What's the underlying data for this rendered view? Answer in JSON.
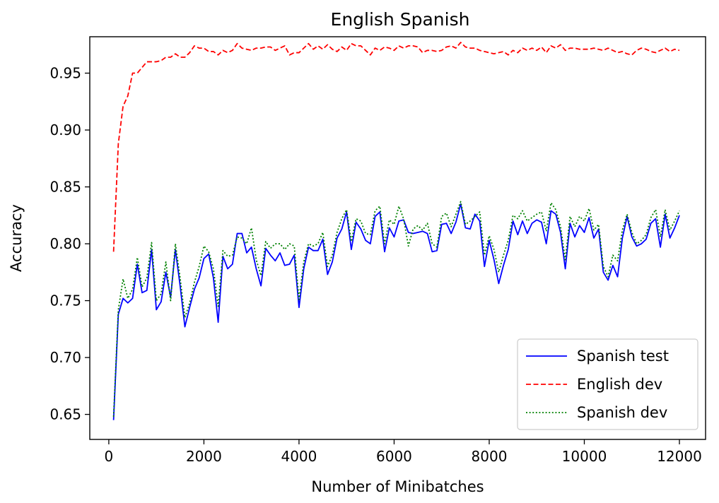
{
  "chart_data": {
    "type": "line",
    "title": "English Spanish",
    "xlabel": "Number of Minibatches",
    "ylabel": "Accuracy",
    "xlim": [
      -400,
      12550
    ],
    "ylim": [
      0.628,
      0.982
    ],
    "xticks": [
      0,
      2000,
      4000,
      6000,
      8000,
      10000,
      12000
    ],
    "xtick_labels": [
      "0",
      "2000",
      "4000",
      "6000",
      "8000",
      "10000",
      "12000"
    ],
    "yticks": [
      0.65,
      0.7,
      0.75,
      0.8,
      0.85,
      0.9,
      0.95
    ],
    "ytick_labels": [
      "0.65",
      "0.70",
      "0.75",
      "0.80",
      "0.85",
      "0.90",
      "0.95"
    ],
    "grid": false,
    "legend_position": "bottom-right",
    "x": [
      100,
      200,
      300,
      400,
      500,
      600,
      700,
      800,
      900,
      1000,
      1100,
      1200,
      1300,
      1400,
      1500,
      1600,
      1700,
      1800,
      1900,
      2000,
      2100,
      2200,
      2300,
      2400,
      2500,
      2600,
      2700,
      2800,
      2900,
      3000,
      3100,
      3200,
      3300,
      3400,
      3500,
      3600,
      3700,
      3800,
      3900,
      4000,
      4100,
      4200,
      4300,
      4400,
      4500,
      4600,
      4700,
      4800,
      4900,
      5000,
      5100,
      5200,
      5300,
      5400,
      5500,
      5600,
      5700,
      5800,
      5900,
      6000,
      6100,
      6200,
      6300,
      6400,
      6500,
      6600,
      6700,
      6800,
      6900,
      7000,
      7100,
      7200,
      7300,
      7400,
      7500,
      7600,
      7700,
      7800,
      7900,
      8000,
      8100,
      8200,
      8300,
      8400,
      8500,
      8600,
      8700,
      8800,
      8900,
      9000,
      9100,
      9200,
      9300,
      9400,
      9500,
      9600,
      9700,
      9800,
      9900,
      10000,
      10100,
      10200,
      10300,
      10400,
      10500,
      10600,
      10700,
      10800,
      10900,
      11000,
      11100,
      11200,
      11300,
      11400,
      11500,
      11600,
      11700,
      11800,
      11900,
      12000
    ],
    "series": [
      {
        "name": "Spanish test",
        "color": "#0000ff",
        "style": "solid",
        "values": [
          0.645,
          0.738,
          0.752,
          0.748,
          0.752,
          0.782,
          0.757,
          0.759,
          0.795,
          0.742,
          0.749,
          0.775,
          0.753,
          0.795,
          0.763,
          0.727,
          0.744,
          0.76,
          0.77,
          0.787,
          0.791,
          0.77,
          0.731,
          0.789,
          0.778,
          0.782,
          0.809,
          0.809,
          0.792,
          0.797,
          0.778,
          0.763,
          0.796,
          0.79,
          0.785,
          0.792,
          0.781,
          0.782,
          0.79,
          0.744,
          0.778,
          0.797,
          0.794,
          0.794,
          0.804,
          0.773,
          0.784,
          0.805,
          0.813,
          0.828,
          0.795,
          0.819,
          0.813,
          0.803,
          0.8,
          0.824,
          0.828,
          0.793,
          0.814,
          0.806,
          0.82,
          0.821,
          0.81,
          0.809,
          0.81,
          0.811,
          0.809,
          0.793,
          0.794,
          0.817,
          0.818,
          0.809,
          0.819,
          0.835,
          0.814,
          0.813,
          0.826,
          0.82,
          0.78,
          0.803,
          0.786,
          0.765,
          0.781,
          0.795,
          0.82,
          0.808,
          0.82,
          0.809,
          0.818,
          0.821,
          0.819,
          0.8,
          0.829,
          0.826,
          0.81,
          0.778,
          0.818,
          0.806,
          0.816,
          0.81,
          0.823,
          0.805,
          0.813,
          0.775,
          0.768,
          0.781,
          0.771,
          0.805,
          0.824,
          0.806,
          0.798,
          0.8,
          0.804,
          0.818,
          0.822,
          0.797,
          0.826,
          0.805,
          0.814,
          0.825
        ]
      },
      {
        "name": "English dev",
        "color": "#ff0000",
        "style": "dashed",
        "values": [
          0.793,
          0.888,
          0.921,
          0.93,
          0.95,
          0.95,
          0.955,
          0.96,
          0.96,
          0.96,
          0.961,
          0.964,
          0.964,
          0.967,
          0.964,
          0.964,
          0.968,
          0.974,
          0.972,
          0.972,
          0.969,
          0.969,
          0.966,
          0.97,
          0.968,
          0.97,
          0.976,
          0.972,
          0.971,
          0.97,
          0.972,
          0.972,
          0.973,
          0.973,
          0.97,
          0.972,
          0.974,
          0.966,
          0.968,
          0.968,
          0.972,
          0.976,
          0.971,
          0.974,
          0.971,
          0.975,
          0.971,
          0.969,
          0.973,
          0.97,
          0.976,
          0.974,
          0.974,
          0.97,
          0.966,
          0.972,
          0.97,
          0.973,
          0.972,
          0.97,
          0.974,
          0.972,
          0.974,
          0.974,
          0.973,
          0.968,
          0.97,
          0.97,
          0.969,
          0.97,
          0.973,
          0.974,
          0.972,
          0.977,
          0.973,
          0.972,
          0.972,
          0.97,
          0.969,
          0.968,
          0.967,
          0.968,
          0.969,
          0.966,
          0.97,
          0.968,
          0.972,
          0.97,
          0.972,
          0.97,
          0.973,
          0.968,
          0.974,
          0.972,
          0.975,
          0.97,
          0.972,
          0.972,
          0.971,
          0.971,
          0.971,
          0.972,
          0.971,
          0.97,
          0.972,
          0.97,
          0.968,
          0.969,
          0.967,
          0.966,
          0.97,
          0.972,
          0.971,
          0.969,
          0.968,
          0.97,
          0.972,
          0.969,
          0.971,
          0.97
        ]
      },
      {
        "name": "Spanish dev",
        "color": "#008000",
        "style": "dotted",
        "values": [
          0.648,
          0.742,
          0.769,
          0.752,
          0.76,
          0.788,
          0.762,
          0.77,
          0.801,
          0.75,
          0.756,
          0.784,
          0.75,
          0.8,
          0.77,
          0.735,
          0.748,
          0.766,
          0.78,
          0.798,
          0.793,
          0.778,
          0.745,
          0.794,
          0.789,
          0.79,
          0.806,
          0.805,
          0.8,
          0.814,
          0.786,
          0.772,
          0.802,
          0.796,
          0.8,
          0.8,
          0.795,
          0.8,
          0.798,
          0.751,
          0.784,
          0.8,
          0.798,
          0.8,
          0.81,
          0.78,
          0.79,
          0.81,
          0.822,
          0.83,
          0.802,
          0.822,
          0.82,
          0.809,
          0.808,
          0.829,
          0.833,
          0.8,
          0.821,
          0.817,
          0.833,
          0.822,
          0.798,
          0.813,
          0.816,
          0.812,
          0.818,
          0.8,
          0.797,
          0.824,
          0.827,
          0.815,
          0.826,
          0.837,
          0.817,
          0.82,
          0.824,
          0.828,
          0.79,
          0.807,
          0.795,
          0.775,
          0.79,
          0.803,
          0.825,
          0.822,
          0.829,
          0.82,
          0.823,
          0.826,
          0.828,
          0.811,
          0.836,
          0.83,
          0.815,
          0.786,
          0.824,
          0.815,
          0.824,
          0.82,
          0.831,
          0.812,
          0.817,
          0.78,
          0.771,
          0.79,
          0.785,
          0.812,
          0.826,
          0.81,
          0.8,
          0.803,
          0.808,
          0.823,
          0.83,
          0.806,
          0.83,
          0.812,
          0.82,
          0.829
        ]
      }
    ]
  }
}
